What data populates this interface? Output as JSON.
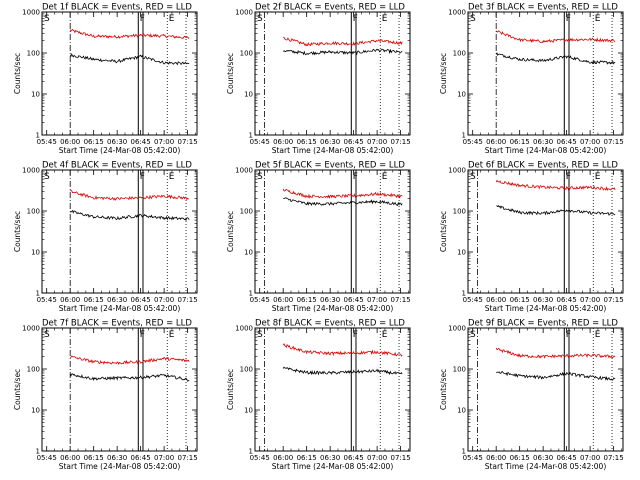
{
  "chart_data": {
    "type": "line",
    "grid": {
      "rows": 3,
      "cols": 3
    },
    "shared": {
      "xlabel": "Start Time (24-Mar-08 05:42:00)",
      "ylabel": "Counts/sec",
      "x_ticks_min": [
        0,
        15,
        30,
        45,
        60,
        75,
        90
      ],
      "x_tick_labels": [
        "05:45",
        "06:00",
        "06:15",
        "06:30",
        "06:45",
        "07:00",
        "07:15"
      ],
      "xlim_min": [
        -3,
        96
      ],
      "y_scale": "log",
      "ylim": [
        1,
        1000
      ],
      "y_ticks": [
        1,
        10,
        100,
        1000
      ],
      "y_tick_labels": [
        "1",
        "10",
        "100",
        "1000"
      ],
      "series_colors": {
        "events": "#000000",
        "lld": "#dd0000"
      },
      "markers": {
        "s": "S",
        "f": "F",
        "e": "E"
      },
      "marker_positions_min": {
        "f_box": [
          58.5,
          61.5
        ],
        "e": [
          77,
          89
        ]
      }
    },
    "panels": [
      {
        "title": "Det 1f BLACK = Events, RED = LLD",
        "s_line_min": 15,
        "black": [
          90,
          70,
          62,
          82,
          58,
          55
        ],
        "red": [
          360,
          255,
          250,
          270,
          260,
          235
        ]
      },
      {
        "title": "Det 2f BLACK = Events, RED = LLD",
        "s_line_min": 3,
        "black": [
          115,
          98,
          106,
          100,
          118,
          104
        ],
        "red": [
          235,
          160,
          175,
          168,
          200,
          175
        ]
      },
      {
        "title": "Det 3f BLACK = Events, RED = LLD",
        "s_line_min": 15,
        "black": [
          95,
          70,
          65,
          82,
          60,
          58
        ],
        "red": [
          340,
          210,
          190,
          210,
          215,
          200
        ]
      },
      {
        "title": "Det 4f BLACK = Events, RED = LLD",
        "s_line_min": 15,
        "black": [
          98,
          72,
          66,
          78,
          68,
          64
        ],
        "red": [
          300,
          210,
          200,
          210,
          230,
          205
        ]
      },
      {
        "title": "Det 5f BLACK = Events, RED = LLD",
        "s_line_min": 3,
        "black": [
          205,
          150,
          150,
          160,
          170,
          145
        ],
        "red": [
          330,
          230,
          225,
          235,
          260,
          230
        ]
      },
      {
        "title": "Det 6f BLACK = Events, RED = LLD",
        "s_line_min": 3,
        "black": [
          130,
          92,
          88,
          105,
          90,
          85
        ],
        "red": [
          540,
          420,
          380,
          360,
          380,
          340
        ]
      },
      {
        "title": "Det 7f BLACK = Events, RED = LLD",
        "s_line_min": 15,
        "black": [
          75,
          58,
          60,
          62,
          70,
          55
        ],
        "red": [
          200,
          150,
          140,
          150,
          180,
          160
        ]
      },
      {
        "title": "Det 8f BLACK = Events, RED = LLD",
        "s_line_min": 3,
        "black": [
          105,
          82,
          80,
          85,
          90,
          75
        ],
        "red": [
          385,
          260,
          240,
          245,
          260,
          220
        ]
      },
      {
        "title": "Det 9f BLACK = Events, RED = LLD",
        "s_line_min": 3,
        "black": [
          85,
          68,
          62,
          78,
          64,
          56
        ],
        "red": [
          310,
          210,
          200,
          210,
          215,
          200
        ]
      }
    ]
  }
}
